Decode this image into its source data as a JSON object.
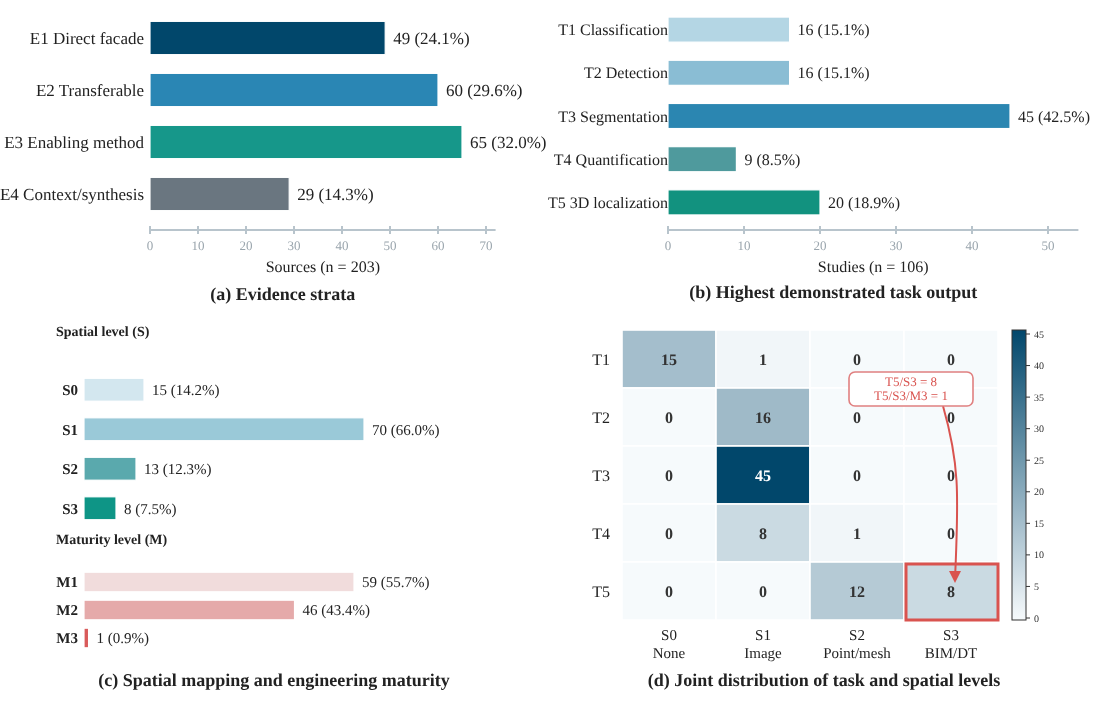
{
  "chart_data": [
    {
      "type": "bar",
      "orientation": "horizontal",
      "title": "(a) Evidence strata",
      "xlabel": "Sources (n = 203)",
      "categories": [
        "E1 Direct facade",
        "E2 Transferable",
        "E3 Enabling method",
        "E4 Context/synthesis"
      ],
      "values": [
        49,
        60,
        65,
        29
      ],
      "colors": [
        "#01476b",
        "#2a86b4",
        "#16978a",
        "#6a7680"
      ],
      "value_labels": [
        "49 (24.1%)",
        "60 (29.6%)",
        "65 (32.0%)",
        "29 (14.3%)"
      ],
      "xlim": [
        0,
        72
      ],
      "xticks": [
        0,
        10,
        20,
        30,
        40,
        50,
        60,
        70
      ],
      "grid": false
    },
    {
      "type": "bar",
      "orientation": "horizontal",
      "title": "(b) Highest demonstrated task output",
      "xlabel": "Studies (n = 106)",
      "categories": [
        "T1 Classification",
        "T2 Detection",
        "T3 Segmentation",
        "T4 Quantification",
        "T5 3D localization"
      ],
      "values": [
        16,
        16,
        45,
        9,
        20
      ],
      "colors": [
        "#b4d6e4",
        "#8abdd4",
        "#2b86b1",
        "#4f9a9d",
        "#12927f"
      ],
      "value_labels": [
        "16 (15.1%)",
        "16 (15.1%)",
        "45 (42.5%)",
        "9 (8.5%)",
        "20 (18.9%)"
      ],
      "xlim": [
        0,
        54
      ],
      "xticks": [
        0,
        10,
        20,
        30,
        40,
        50
      ],
      "grid": false
    },
    {
      "type": "bar",
      "orientation": "horizontal",
      "title": "Spatial level (S)",
      "categories": [
        "S0",
        "S1",
        "S2",
        "S3"
      ],
      "values": [
        15,
        70,
        13,
        8
      ],
      "colors": [
        "#d3e7ef",
        "#9ac9d8",
        "#5aa9ad",
        "#0e9586"
      ],
      "value_labels": [
        "15 (14.2%)",
        "70 (66.0%)",
        "13 (12.3%)",
        "8 (7.5%)"
      ]
    },
    {
      "type": "bar",
      "orientation": "horizontal",
      "title": "Maturity level (M)",
      "categories": [
        "M1",
        "M2",
        "M3"
      ],
      "values": [
        59,
        46,
        1
      ],
      "colors": [
        "#f1dcdc",
        "#e5aaaa",
        "#d95b5b"
      ],
      "value_labels": [
        "59 (55.7%)",
        "46 (43.4%)",
        "1 (0.9%)"
      ],
      "annotations": [
        "(c) Spatial mapping and engineering maturity"
      ]
    },
    {
      "type": "heatmap",
      "title": "(d) Joint distribution of task and spatial levels",
      "categories": [
        "S0\nNone",
        "S1\nImage",
        "S2\nPoint/mesh",
        "S3\nBIM/DT"
      ],
      "y_categories": [
        "T1",
        "T2",
        "T3",
        "T4",
        "T5"
      ],
      "cells": [
        [
          15,
          1,
          0,
          0
        ],
        [
          0,
          16,
          0,
          0
        ],
        [
          0,
          45,
          0,
          0
        ],
        [
          0,
          8,
          1,
          0
        ],
        [
          0,
          0,
          12,
          8
        ]
      ],
      "clim": [
        0,
        45
      ],
      "data_labels": true,
      "cticks": [
        0,
        5,
        10,
        15,
        20,
        25,
        30,
        35,
        40,
        45
      ],
      "annotations": [
        "T5/S3 = 8\nT5/S3/M3 = 1"
      ]
    }
  ]
}
